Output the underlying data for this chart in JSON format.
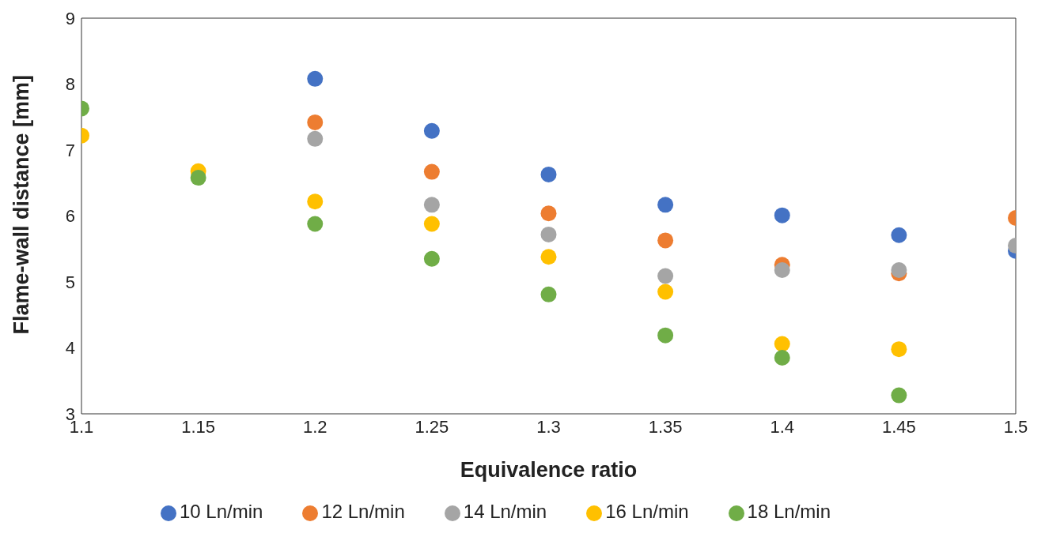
{
  "chart_data": {
    "type": "scatter",
    "xlabel": "Equivalence ratio",
    "ylabel": "Flame-wall distance [mm]",
    "x": [
      1.1,
      1.15,
      1.2,
      1.25,
      1.3,
      1.35,
      1.4,
      1.45,
      1.5
    ],
    "series": [
      {
        "name": "10 Ln/min",
        "color": "#4472c4",
        "values": [
          null,
          null,
          8.08,
          7.29,
          6.63,
          6.17,
          6.01,
          5.71,
          5.47
        ]
      },
      {
        "name": "12 Ln/min",
        "color": "#ed7d31",
        "values": [
          null,
          null,
          7.42,
          6.67,
          6.04,
          5.63,
          5.26,
          5.13,
          5.97
        ]
      },
      {
        "name": "14 Ln/min",
        "color": "#a5a5a5",
        "values": [
          null,
          null,
          7.17,
          6.17,
          5.72,
          5.09,
          5.18,
          5.18,
          5.55
        ]
      },
      {
        "name": "16 Ln/min",
        "color": "#ffc000",
        "values": [
          7.22,
          6.68,
          6.22,
          5.88,
          5.38,
          4.85,
          4.06,
          3.98,
          null
        ]
      },
      {
        "name": "18 Ln/min",
        "color": "#70ad47",
        "values": [
          7.63,
          6.58,
          5.88,
          5.35,
          4.81,
          4.19,
          3.85,
          3.28,
          null
        ]
      }
    ],
    "xlim": [
      1.1,
      1.5
    ],
    "xticks": [
      1.1,
      1.15,
      1.2,
      1.25,
      1.3,
      1.35,
      1.4,
      1.45,
      1.5
    ],
    "ylim": [
      3,
      9
    ],
    "yticks": [
      3,
      4,
      5,
      6,
      7,
      8,
      9
    ],
    "grid": false,
    "legend": "bottom",
    "marker": "circle"
  }
}
